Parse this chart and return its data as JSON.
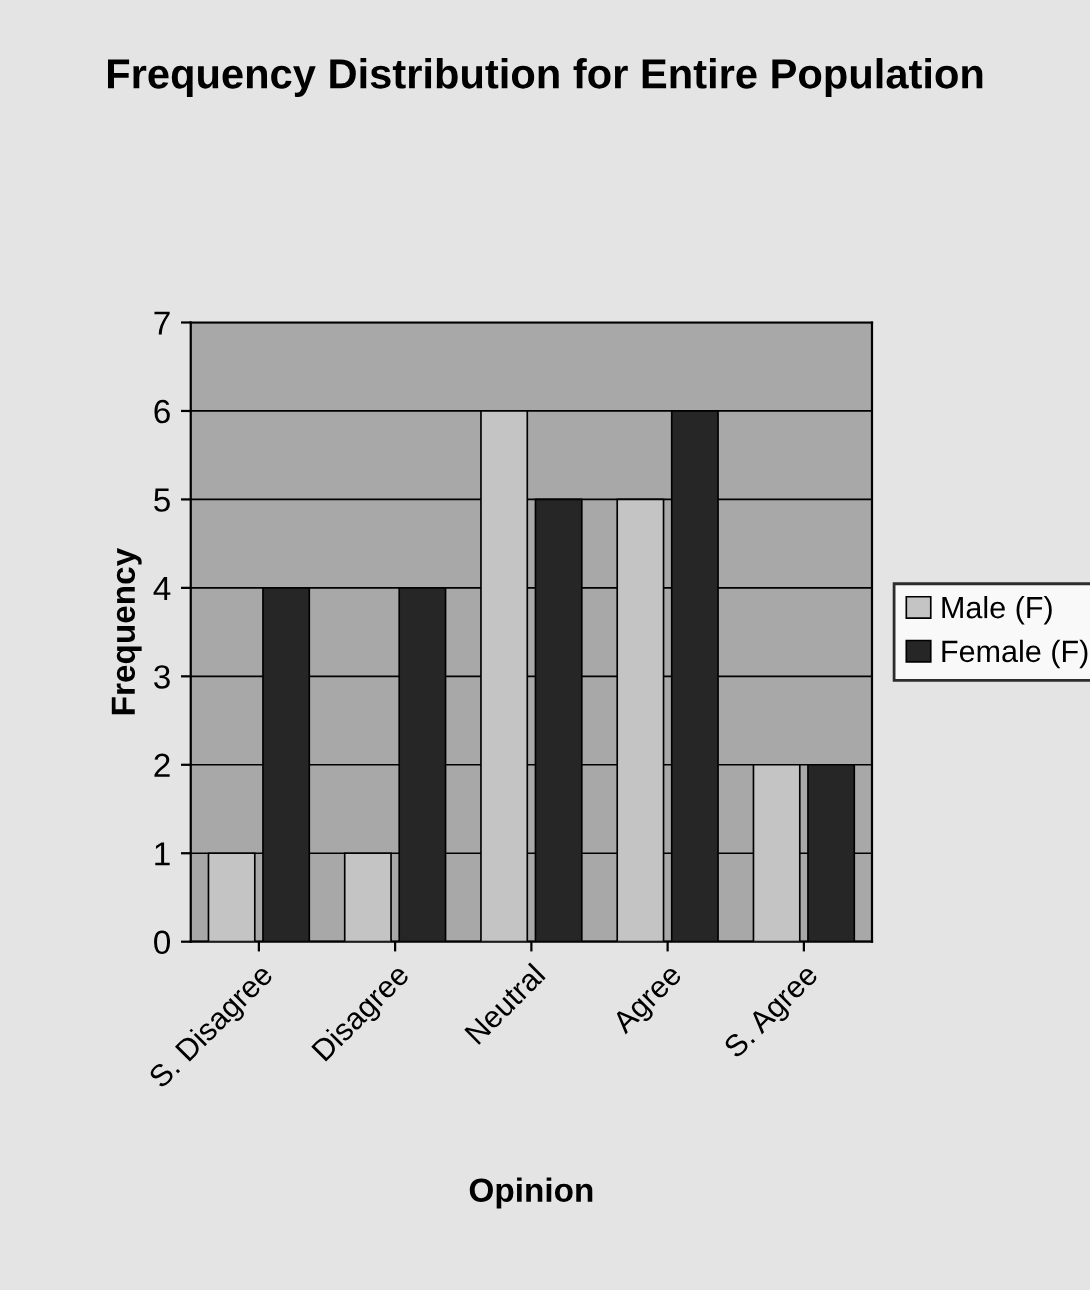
{
  "chart_data": {
    "type": "bar",
    "title": "Frequency Distribution for Entire Population",
    "xlabel": "Opinion",
    "ylabel": "Frequency",
    "categories": [
      "S. Disagree",
      "Disagree",
      "Neutral",
      "Agree",
      "S. Agree"
    ],
    "series": [
      {
        "name": "Male (F)",
        "color": "#c4c4c4",
        "values": [
          1,
          1,
          6,
          5,
          2
        ]
      },
      {
        "name": "Female (F)",
        "color": "#262626",
        "values": [
          4,
          4,
          5,
          6,
          2
        ]
      }
    ],
    "ylim": [
      0,
      7
    ],
    "yticks": [
      0,
      1,
      2,
      3,
      4,
      5,
      6,
      7
    ],
    "grid": "y",
    "legend": "right"
  }
}
